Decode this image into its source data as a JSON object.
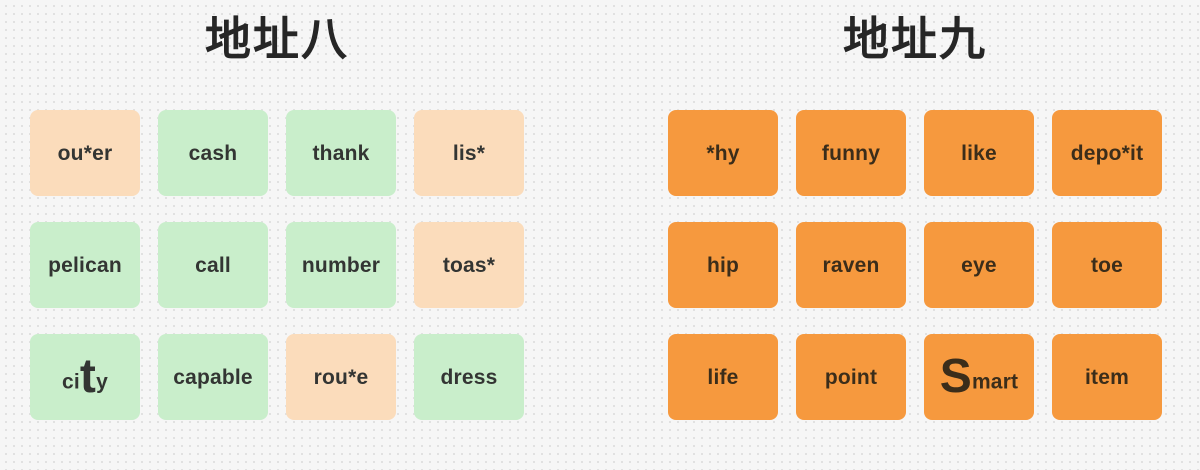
{
  "colors": {
    "canvas_bg": "#f6f6f6",
    "dot": "#e0e0e0",
    "green": "#c9eecb",
    "peach": "#fbdcbb",
    "orange": "#f6993e",
    "text_dark": "#333533",
    "text_orange_card": "#3b2d1a"
  },
  "groups": [
    {
      "title": "地址八",
      "cards": [
        {
          "text": "ou*er",
          "color": "peach"
        },
        {
          "text": "cash",
          "color": "green"
        },
        {
          "text": "thank",
          "color": "green"
        },
        {
          "text": "lis*",
          "color": "peach"
        },
        {
          "text": "pelican",
          "color": "green"
        },
        {
          "text": "call",
          "color": "green"
        },
        {
          "text": "number",
          "color": "green"
        },
        {
          "text": "toas*",
          "color": "peach"
        },
        {
          "text": "city",
          "color": "green",
          "parts": {
            "pre": "ci",
            "big": "t",
            "post": "y"
          }
        },
        {
          "text": "capable",
          "color": "green"
        },
        {
          "text": "rou*e",
          "color": "peach"
        },
        {
          "text": "dress",
          "color": "green"
        }
      ]
    },
    {
      "title": "地址九",
      "cards": [
        {
          "text": "*hy",
          "color": "orange"
        },
        {
          "text": "funny",
          "color": "orange"
        },
        {
          "text": "like",
          "color": "orange"
        },
        {
          "text": "depo*it",
          "color": "orange"
        },
        {
          "text": "hip",
          "color": "orange"
        },
        {
          "text": "raven",
          "color": "orange"
        },
        {
          "text": "eye",
          "color": "orange"
        },
        {
          "text": "toe",
          "color": "orange"
        },
        {
          "text": "life",
          "color": "orange"
        },
        {
          "text": "point",
          "color": "orange"
        },
        {
          "text": "Smart",
          "color": "orange",
          "parts": {
            "pre": "",
            "big": "S",
            "post": "mart"
          }
        },
        {
          "text": "item",
          "color": "orange"
        }
      ]
    }
  ]
}
